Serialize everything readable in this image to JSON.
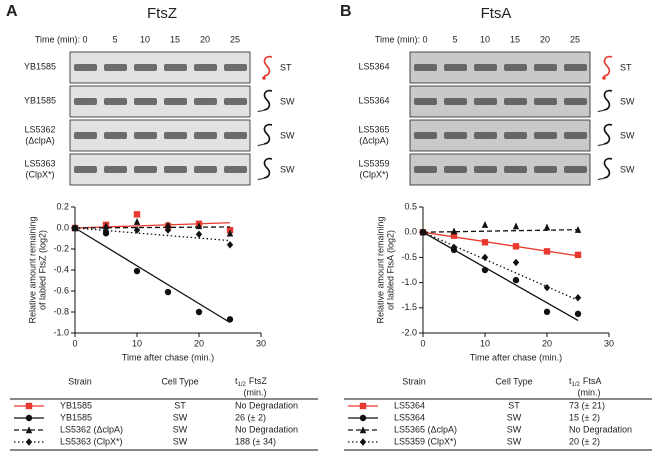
{
  "panels": [
    {
      "letter": "A",
      "title": "FtsZ",
      "time_label": "Time (min):",
      "times": [
        0,
        5,
        10,
        15,
        20,
        25
      ],
      "blots": [
        {
          "strain": "YB1585",
          "cell": "ST"
        },
        {
          "strain": "YB1585",
          "cell": "SW"
        },
        {
          "strain": "LS5362",
          "note": "(ΔclpA)",
          "cell": "SW"
        },
        {
          "strain": "LS5363",
          "note": "(ClpX*)",
          "cell": "SW"
        }
      ],
      "table": {
        "header": {
          "strain": "Strain",
          "cell": "Cell Type",
          "t": "t",
          "sub": "1/2",
          "protein": "FtsZ",
          "unit": "(min.)"
        },
        "rows": [
          [
            "YB1585",
            "ST",
            "No Degradation"
          ],
          [
            "YB1585",
            "SW",
            "26 (± 2)"
          ],
          [
            "LS5362 (ΔclpA)",
            "SW",
            "No Degradation"
          ],
          [
            "LS5363 (ClpX*)",
            "SW",
            "188 (± 34)"
          ]
        ]
      }
    },
    {
      "letter": "B",
      "title": "FtsA",
      "time_label": "Time (min):",
      "times": [
        0,
        5,
        10,
        15,
        20,
        25
      ],
      "blots": [
        {
          "strain": "LS5364",
          "cell": "ST"
        },
        {
          "strain": "LS5364",
          "cell": "SW"
        },
        {
          "strain": "LS5365",
          "note": "(ΔclpA)",
          "cell": "SW"
        },
        {
          "strain": "LS5359",
          "note": "(ClpX*)",
          "cell": "SW"
        }
      ],
      "table": {
        "header": {
          "strain": "Strain",
          "cell": "Cell Type",
          "t": "t",
          "sub": "1/2",
          "protein": "FtsA",
          "unit": "(min.)"
        },
        "rows": [
          [
            "LS5364",
            "ST",
            "73 (± 21)"
          ],
          [
            "LS5364",
            "SW",
            "15 (± 2)"
          ],
          [
            "LS5365 (ΔclpA)",
            "SW",
            "No Degradation"
          ],
          [
            "LS5359 (ClpX*)",
            "SW",
            "20 (± 2)"
          ]
        ]
      }
    }
  ],
  "chart_data": [
    {
      "type": "scatter",
      "ylabel": [
        "Relative amount remaining",
        "of labled FtsZ (log2)"
      ],
      "xlabel": "Time after chase (min.)",
      "x": [
        0,
        5,
        10,
        15,
        20,
        25
      ],
      "xlim": [
        0,
        30
      ],
      "xticks": [
        0,
        10,
        20,
        30
      ],
      "ylim": [
        -1,
        0.2
      ],
      "yticks": [
        0.2,
        {
          "value": 0,
          "label": "0.0"
        },
        -0.2,
        -0.4,
        -0.6,
        -0.8,
        {
          "value": -1,
          "label": "-1.0"
        }
      ],
      "fit_x": [
        0,
        25
      ],
      "series": [
        {
          "color": "#e8392f",
          "marker": "square",
          "dash": "solid",
          "values": [
            0,
            0.03,
            0.13,
            0.02,
            0.04,
            -0.02
          ],
          "fit": [
            0,
            0.05
          ]
        },
        {
          "color": "#111111",
          "marker": "circle",
          "dash": "solid",
          "values": [
            0,
            -0.05,
            -0.41,
            -0.61,
            -0.8,
            -0.87
          ],
          "fit": [
            0,
            -0.9
          ]
        },
        {
          "color": "#111111",
          "marker": "triangle",
          "dash": "dashed",
          "values": [
            0,
            0.02,
            0.06,
            0.03,
            0.02,
            -0.05
          ],
          "fit": [
            0,
            0.01
          ]
        },
        {
          "color": "#111111",
          "marker": "diamond",
          "dash": "dotted",
          "values": [
            0,
            -0.03,
            -0.02,
            -0.02,
            -0.06,
            -0.16
          ],
          "fit": [
            0,
            -0.12
          ]
        }
      ]
    },
    {
      "type": "scatter",
      "ylabel": [
        "Relative amount remaining",
        "of labled FtsA (log2)"
      ],
      "xlabel": "Time after chase (min.)",
      "x": [
        0,
        5,
        10,
        15,
        20,
        25
      ],
      "xlim": [
        0,
        30
      ],
      "xticks": [
        0,
        10,
        20,
        30
      ],
      "ylim": [
        -2,
        0.5
      ],
      "yticks": [
        0.5,
        {
          "value": 0,
          "label": "0.0"
        },
        -0.5,
        {
          "value": -1,
          "label": "-1.0"
        },
        -1.5,
        {
          "value": -2,
          "label": "-2.0"
        }
      ],
      "fit_x": [
        0,
        25
      ],
      "series": [
        {
          "color": "#e8392f",
          "marker": "square",
          "dash": "solid",
          "values": [
            0,
            -0.07,
            -0.2,
            -0.28,
            -0.38,
            -0.45
          ],
          "fit": [
            0,
            -0.47
          ]
        },
        {
          "color": "#111111",
          "marker": "circle",
          "dash": "solid",
          "values": [
            0,
            -0.35,
            -0.75,
            -0.95,
            -1.58,
            -1.62
          ],
          "fit": [
            0,
            -1.75
          ]
        },
        {
          "color": "#111111",
          "marker": "triangle",
          "dash": "dashed",
          "values": [
            0,
            0.02,
            0.15,
            0.12,
            0.1,
            0.05
          ],
          "fit": [
            0,
            0.05
          ]
        },
        {
          "color": "#111111",
          "marker": "diamond",
          "dash": "dotted",
          "values": [
            0,
            -0.3,
            -0.5,
            -0.6,
            -1.1,
            -1.3
          ],
          "fit": [
            0,
            -1.35
          ]
        }
      ]
    }
  ]
}
